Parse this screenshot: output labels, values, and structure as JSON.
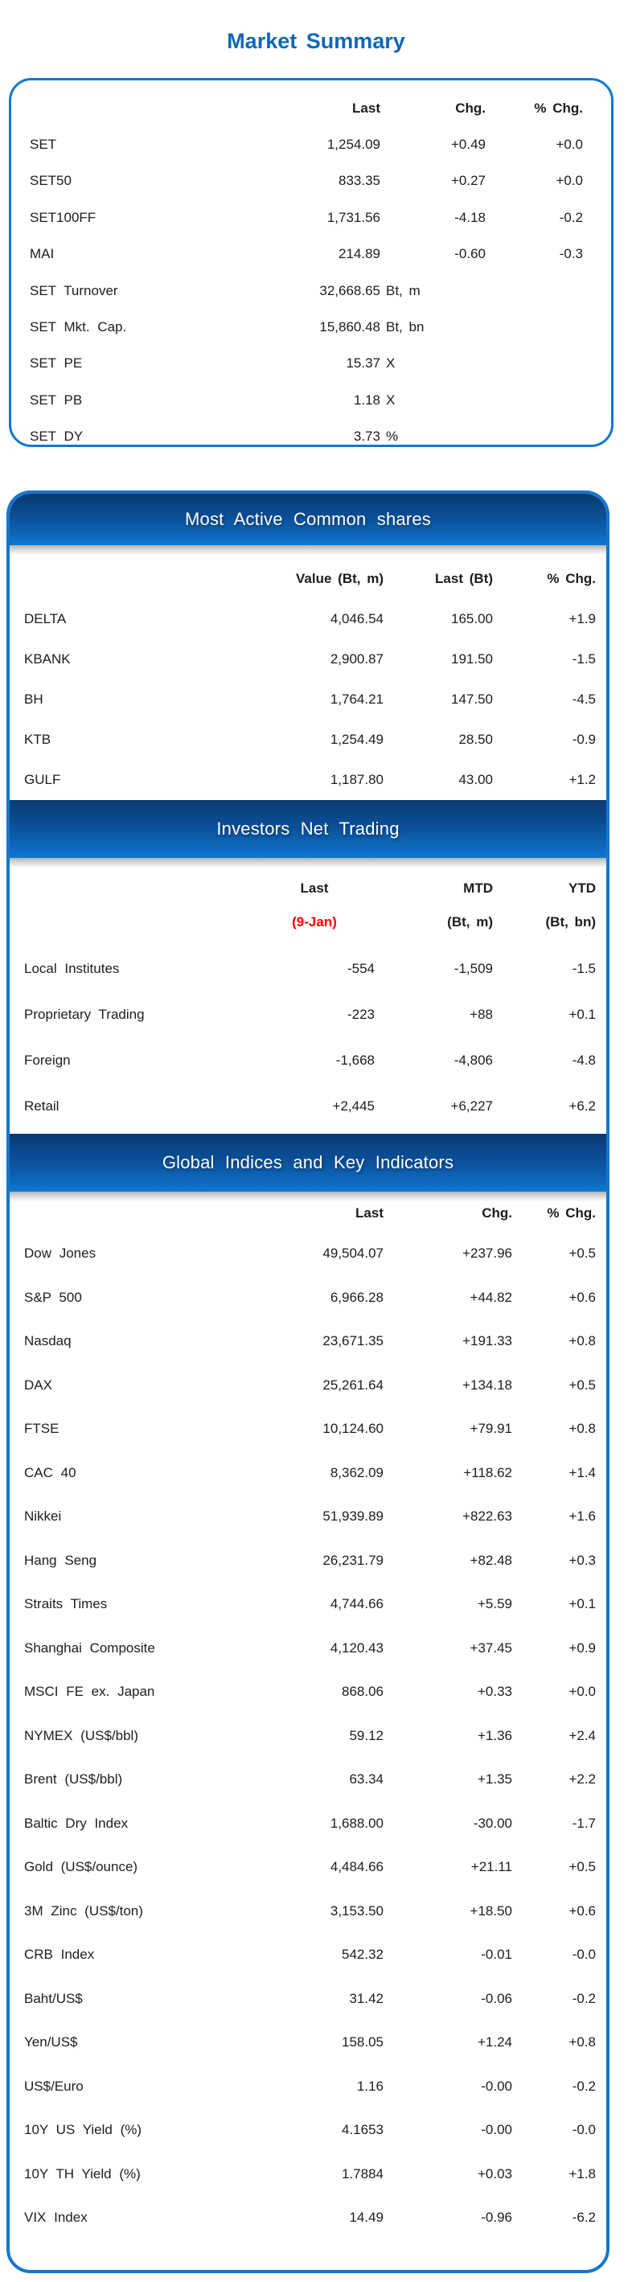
{
  "page_title": "Market Summary",
  "colors": {
    "accent_border": "#1477cd",
    "title_blue": "#0e68b6",
    "bar_gradient_top": "#093a70",
    "bar_gradient_bottom": "#1078cd",
    "date_red": "#fa0000",
    "text": "#1d1d1d"
  },
  "market_summary": {
    "headers": {
      "last": "Last",
      "chg": "Chg.",
      "pct": "% Chg."
    },
    "rows": [
      {
        "label": "SET",
        "last": "1,254.09",
        "chg": "+0.49",
        "pct": "+0.0"
      },
      {
        "label": "SET50",
        "last": "833.35",
        "chg": "+0.27",
        "pct": "+0.0"
      },
      {
        "label": "SET100FF",
        "last": "1,731.56",
        "chg": "-4.18",
        "pct": "-0.2"
      },
      {
        "label": "MAI",
        "last": "214.89",
        "chg": "-0.60",
        "pct": "-0.3"
      },
      {
        "label": "SET Turnover",
        "last": "32,668.65",
        "unit": "Bt, m"
      },
      {
        "label": "SET Mkt. Cap.",
        "last": "15,860.48",
        "unit": "Bt, bn"
      },
      {
        "label": "SET PE",
        "last": "15.37",
        "unit": "X"
      },
      {
        "label": "SET PB",
        "last": "1.18",
        "unit": "X"
      },
      {
        "label": "SET DY",
        "last": "3.73",
        "unit": "%"
      }
    ]
  },
  "most_active": {
    "title": "Most Active Common shares",
    "headers": {
      "value": "Value (Bt, m)",
      "last": "Last (Bt)",
      "pct": "% Chg."
    },
    "rows": [
      {
        "label": "DELTA",
        "value": "4,046.54",
        "last": "165.00",
        "pct": "+1.9"
      },
      {
        "label": "KBANK",
        "value": "2,900.87",
        "last": "191.50",
        "pct": "-1.5"
      },
      {
        "label": "BH",
        "value": "1,764.21",
        "last": "147.50",
        "pct": "-4.5"
      },
      {
        "label": "KTB",
        "value": "1,254.49",
        "last": "28.50",
        "pct": "-0.9"
      },
      {
        "label": "GULF",
        "value": "1,187.80",
        "last": "43.00",
        "pct": "+1.2"
      }
    ]
  },
  "investors": {
    "title": "Investors Net Trading",
    "headers": {
      "last": "Last",
      "last_sub": "(9-Jan)",
      "mtd": "MTD",
      "mtd_sub": "(Bt, m)",
      "ytd": "YTD",
      "ytd_sub": "(Bt, bn)"
    },
    "rows": [
      {
        "label": "Local Institutes",
        "last": "-554",
        "mtd": "-1,509",
        "ytd": "-1.5"
      },
      {
        "label": "Proprietary Trading",
        "last": "-223",
        "mtd": "+88",
        "ytd": "+0.1"
      },
      {
        "label": "Foreign",
        "last": "-1,668",
        "mtd": "-4,806",
        "ytd": "-4.8"
      },
      {
        "label": "Retail",
        "last": "+2,445",
        "mtd": "+6,227",
        "ytd": "+6.2"
      }
    ]
  },
  "global_indices": {
    "title": "Global Indices and Key Indicators",
    "headers": {
      "last": "Last",
      "chg": "Chg.",
      "pct": "% Chg."
    },
    "rows": [
      {
        "label": "Dow Jones",
        "last": "49,504.07",
        "chg": "+237.96",
        "pct": "+0.5"
      },
      {
        "label": "S&P 500",
        "last": "6,966.28",
        "chg": "+44.82",
        "pct": "+0.6"
      },
      {
        "label": "Nasdaq",
        "last": "23,671.35",
        "chg": "+191.33",
        "pct": "+0.8"
      },
      {
        "label": "DAX",
        "last": "25,261.64",
        "chg": "+134.18",
        "pct": "+0.5"
      },
      {
        "label": "FTSE",
        "last": "10,124.60",
        "chg": "+79.91",
        "pct": "+0.8"
      },
      {
        "label": "CAC 40",
        "last": "8,362.09",
        "chg": "+118.62",
        "pct": "+1.4"
      },
      {
        "label": "Nikkei",
        "last": "51,939.89",
        "chg": "+822.63",
        "pct": "+1.6"
      },
      {
        "label": "Hang Seng",
        "last": "26,231.79",
        "chg": "+82.48",
        "pct": "+0.3"
      },
      {
        "label": "Straits Times",
        "last": "4,744.66",
        "chg": "+5.59",
        "pct": "+0.1"
      },
      {
        "label": "Shanghai Composite",
        "last": "4,120.43",
        "chg": "+37.45",
        "pct": "+0.9"
      },
      {
        "label": "MSCI FE ex. Japan",
        "last": "868.06",
        "chg": "+0.33",
        "pct": "+0.0"
      },
      {
        "label": "NYMEX (US$/bbl)",
        "last": "59.12",
        "chg": "+1.36",
        "pct": "+2.4"
      },
      {
        "label": "Brent (US$/bbl)",
        "last": "63.34",
        "chg": "+1.35",
        "pct": "+2.2"
      },
      {
        "label": "Baltic Dry Index",
        "last": "1,688.00",
        "chg": "-30.00",
        "pct": "-1.7"
      },
      {
        "label": "Gold (US$/ounce)",
        "last": "4,484.66",
        "chg": "+21.11",
        "pct": "+0.5"
      },
      {
        "label": "3M Zinc (US$/ton)",
        "last": "3,153.50",
        "chg": "+18.50",
        "pct": "+0.6"
      },
      {
        "label": "CRB Index",
        "last": "542.32",
        "chg": "-0.01",
        "pct": "-0.0"
      },
      {
        "label": "Baht/US$",
        "last": "31.42",
        "chg": "-0.06",
        "pct": "-0.2"
      },
      {
        "label": "Yen/US$",
        "last": "158.05",
        "chg": "+1.24",
        "pct": "+0.8"
      },
      {
        "label": "US$/Euro",
        "last": "1.16",
        "chg": "-0.00",
        "pct": "-0.2"
      },
      {
        "label": "10Y US Yield (%)",
        "last": "4.1653",
        "chg": "-0.00",
        "pct": "-0.0"
      },
      {
        "label": "10Y TH Yield (%)",
        "last": "1.7884",
        "chg": "+0.03",
        "pct": "+1.8"
      },
      {
        "label": "VIX Index",
        "last": "14.49",
        "chg": "-0.96",
        "pct": "-6.2"
      }
    ]
  }
}
